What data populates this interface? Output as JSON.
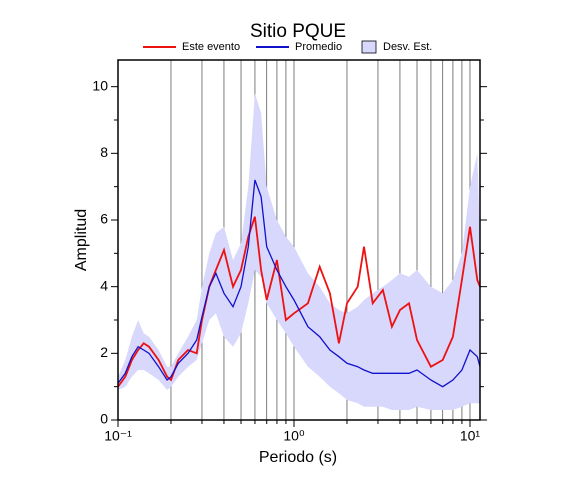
{
  "chart_data": {
    "type": "line",
    "title": "Sitio PQUE",
    "x_label": "Periodo (s)",
    "y_label": "Amplitud",
    "x_log": true,
    "x": [
      0.1,
      0.11,
      0.12,
      0.13,
      0.14,
      0.15,
      0.17,
      0.19,
      0.2,
      0.22,
      0.25,
      0.28,
      0.3,
      0.33,
      0.36,
      0.4,
      0.45,
      0.5,
      0.55,
      0.6,
      0.65,
      0.7,
      0.8,
      0.9,
      1.0,
      1.2,
      1.4,
      1.6,
      1.8,
      2.0,
      2.3,
      2.5,
      2.8,
      3.2,
      3.6,
      4,
      4.5,
      5,
      6,
      7,
      8,
      9,
      10,
      11,
      11.4
    ],
    "series": [
      {
        "name": "Desv. Est.",
        "color": "#d8d8fc",
        "upper": [
          1.3,
          1.8,
          2.5,
          3.0,
          2.6,
          2.5,
          2.1,
          1.6,
          1.6,
          2.0,
          2.5,
          3.0,
          4.0,
          5.0,
          5.6,
          5.8,
          4.8,
          5.3,
          7.0,
          9.8,
          9.2,
          7.0,
          6.0,
          5.5,
          5.2,
          4.4,
          4.0,
          3.5,
          3.3,
          3.2,
          3.4,
          3.6,
          3.8,
          4.0,
          4.2,
          4.4,
          4.3,
          4.5,
          4.0,
          3.8,
          4.2,
          5.0,
          7.0,
          8.0,
          5.5
        ],
        "lower": [
          0.9,
          1.0,
          1.3,
          1.5,
          1.5,
          1.4,
          1.2,
          0.9,
          1.0,
          1.3,
          1.6,
          1.8,
          2.3,
          3.0,
          3.2,
          2.5,
          2.2,
          2.6,
          3.5,
          4.5,
          4.3,
          3.5,
          3.0,
          2.6,
          2.2,
          1.6,
          1.3,
          1.0,
          0.8,
          0.6,
          0.5,
          0.4,
          0.4,
          0.4,
          0.3,
          0.3,
          0.3,
          0.4,
          0.3,
          0.3,
          0.3,
          0.4,
          0.5,
          0.5,
          0.5
        ]
      },
      {
        "name": "Este evento",
        "color": "#ee1111",
        "values": [
          1.0,
          1.3,
          1.8,
          2.1,
          2.3,
          2.2,
          1.8,
          1.3,
          1.2,
          1.8,
          2.1,
          2.0,
          3.0,
          4.0,
          4.5,
          5.1,
          4.0,
          4.5,
          5.5,
          6.1,
          4.5,
          3.6,
          4.8,
          3.0,
          3.2,
          3.5,
          4.6,
          3.8,
          2.3,
          3.5,
          4.0,
          5.2,
          3.5,
          3.9,
          2.8,
          3.3,
          3.5,
          2.4,
          1.6,
          1.8,
          2.5,
          4.2,
          5.8,
          4.2,
          4.0
        ]
      },
      {
        "name": "Promedio",
        "color": "#1111cc",
        "values": [
          1.1,
          1.4,
          1.9,
          2.2,
          2.1,
          2.0,
          1.6,
          1.2,
          1.3,
          1.7,
          2.0,
          2.4,
          3.1,
          4.0,
          4.4,
          3.8,
          3.4,
          4.0,
          5.2,
          7.2,
          6.7,
          5.2,
          4.5,
          4.0,
          3.6,
          2.8,
          2.5,
          2.1,
          1.9,
          1.7,
          1.6,
          1.5,
          1.4,
          1.4,
          1.4,
          1.4,
          1.4,
          1.5,
          1.2,
          1.0,
          1.2,
          1.5,
          2.1,
          1.9,
          1.6
        ]
      }
    ],
    "xlim": [
      0.1,
      11.4
    ],
    "ylim": [
      0,
      10.8
    ],
    "xticks": [
      {
        "value": 0.1,
        "label": "10⁻¹"
      },
      {
        "value": 1,
        "label": "10⁰"
      },
      {
        "value": 10,
        "label": "10¹"
      }
    ],
    "xminorticks": [
      0.2,
      0.3,
      0.4,
      0.5,
      0.6,
      0.7,
      0.8,
      0.9,
      2,
      3,
      4,
      5,
      6,
      7,
      8,
      9
    ],
    "yticks": [
      0,
      2,
      4,
      6,
      8,
      10
    ],
    "yminorticks": [
      1,
      3,
      5,
      7,
      9
    ],
    "grid": true
  }
}
